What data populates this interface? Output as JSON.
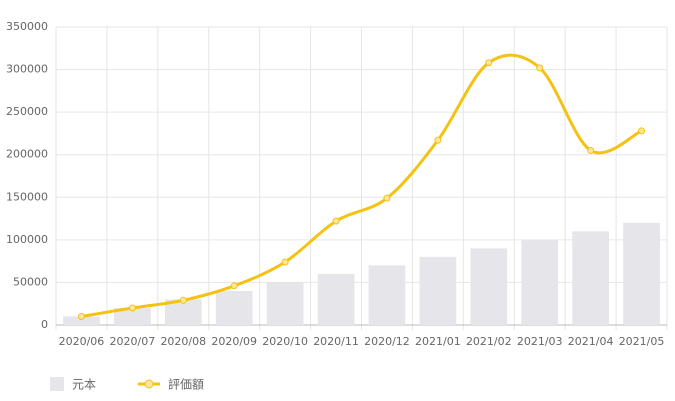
{
  "chart_data": {
    "type": "bar-line",
    "categories": [
      "2020/06",
      "2020/07",
      "2020/08",
      "2020/09",
      "2020/10",
      "2020/11",
      "2020/12",
      "2021/01",
      "2021/02",
      "2021/03",
      "2021/04",
      "2021/05"
    ],
    "series": [
      {
        "name": "元本",
        "type": "bar",
        "color": "#e5e5ea",
        "values": [
          10000,
          20000,
          30000,
          40000,
          50000,
          60000,
          70000,
          80000,
          90000,
          100000,
          110000,
          120000
        ]
      },
      {
        "name": "評価額",
        "type": "line",
        "color": "#f5c211",
        "values": [
          10000,
          20000,
          29000,
          46000,
          74000,
          122000,
          149000,
          217000,
          308000,
          302000,
          205000,
          228000
        ]
      }
    ],
    "ylim": [
      0,
      350000
    ],
    "yticks": [
      0,
      50000,
      100000,
      150000,
      200000,
      250000,
      300000,
      350000
    ],
    "grid": true
  }
}
